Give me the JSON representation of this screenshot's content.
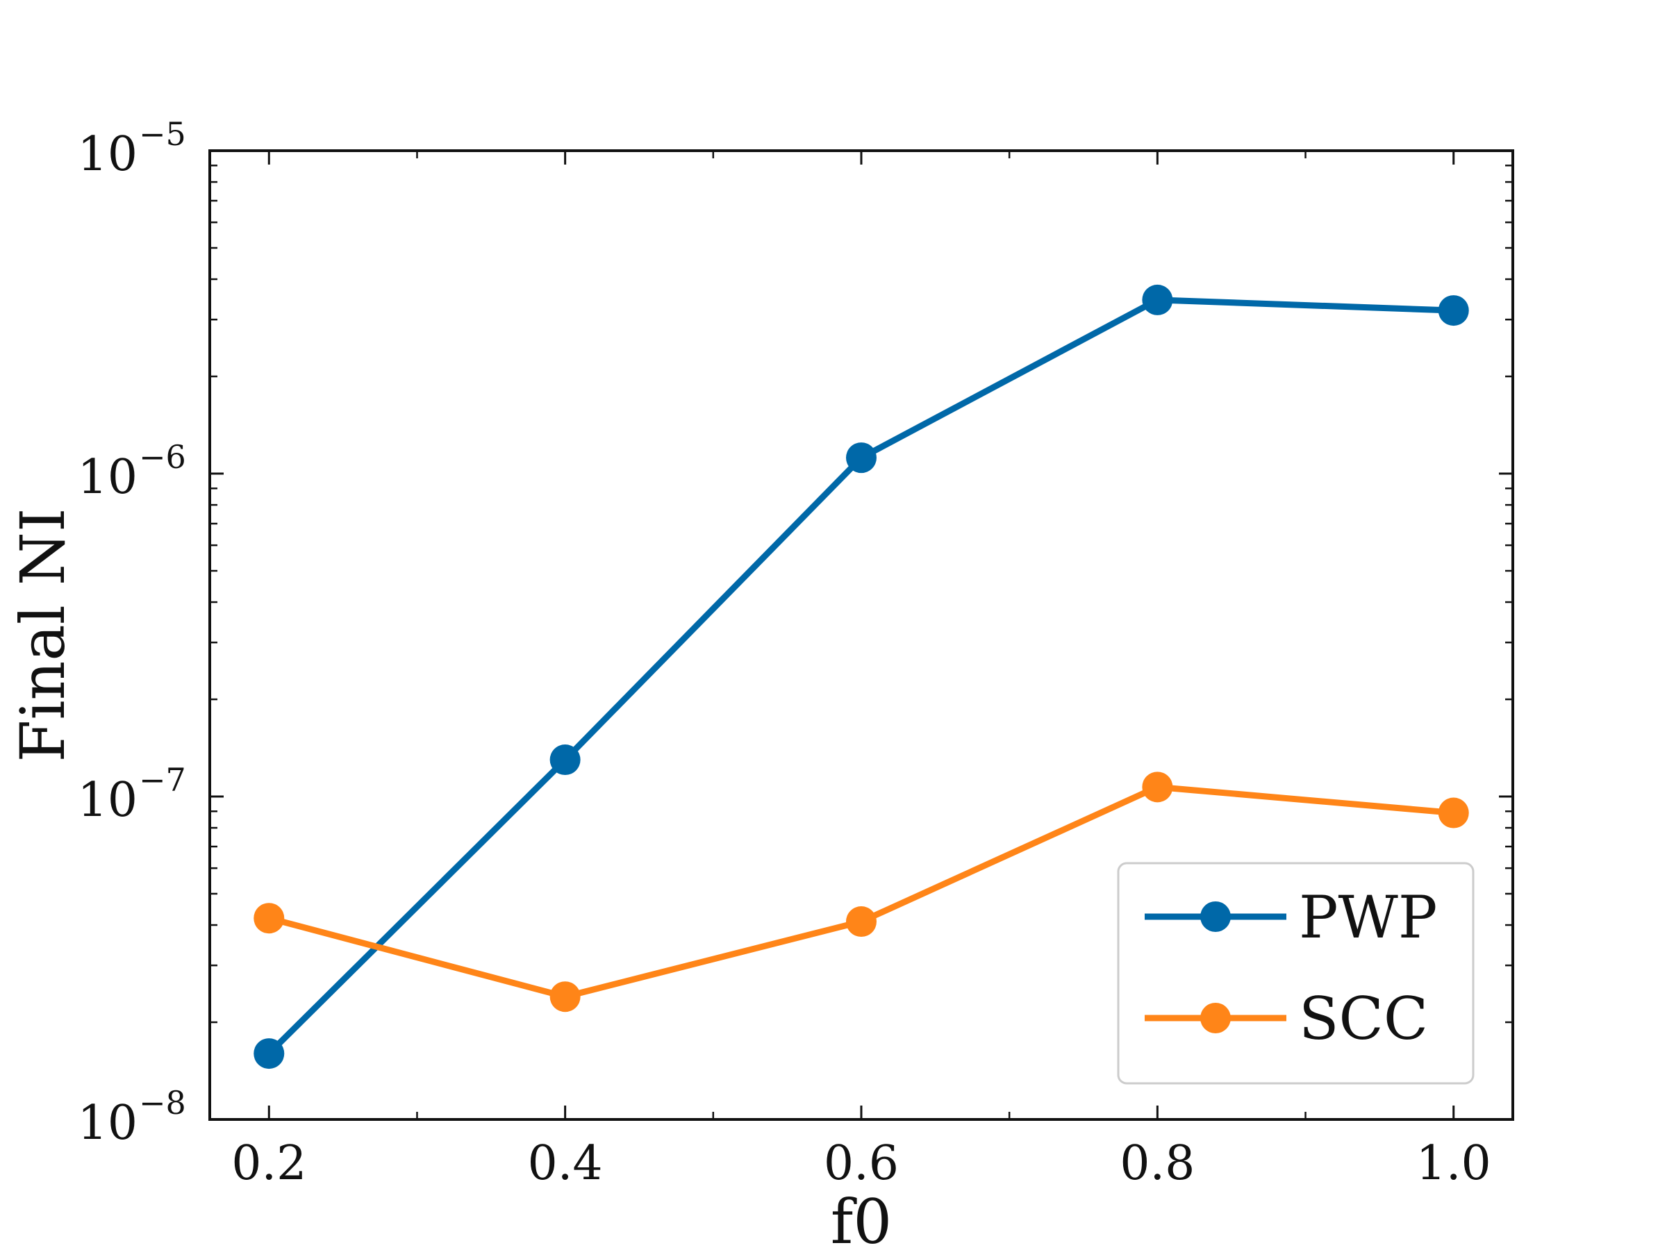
{
  "chart_data": {
    "type": "line",
    "xlabel": "f0",
    "ylabel": "Final NI",
    "y_scale": "log",
    "x": [
      0.2,
      0.4,
      0.6,
      0.8,
      1.0
    ],
    "xlim": [
      0.16,
      1.04
    ],
    "ylim": [
      1e-08,
      1e-05
    ],
    "x_tick_labels": [
      "0.2",
      "0.4",
      "0.6",
      "0.8",
      "1.0"
    ],
    "y_ticks": [
      {
        "value": 1e-08,
        "base": "10",
        "exp": "−8"
      },
      {
        "value": 1e-07,
        "base": "10",
        "exp": "−7"
      },
      {
        "value": 1e-06,
        "base": "10",
        "exp": "−6"
      },
      {
        "value": 1e-05,
        "base": "10",
        "exp": "−5"
      }
    ],
    "series": [
      {
        "name": "PWP",
        "color": "#0068a8",
        "values": [
          1.6e-08,
          1.3e-07,
          1.12e-06,
          3.45e-06,
          3.2e-06
        ]
      },
      {
        "name": "SCC",
        "color": "#ff8518",
        "values": [
          4.2e-08,
          2.4e-08,
          4.1e-08,
          1.07e-07,
          8.9e-08
        ]
      }
    ],
    "grid": false,
    "legend_position": "bottom-right"
  }
}
